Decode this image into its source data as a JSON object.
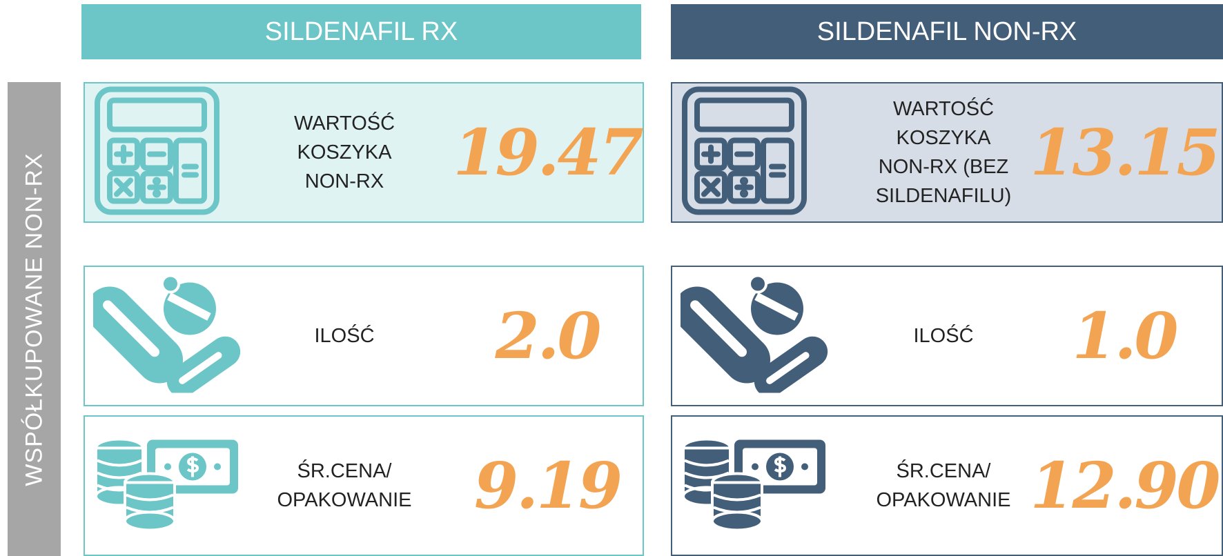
{
  "side_label": "WSPÓŁKUPOWANE NON-RX",
  "columns": [
    {
      "header": "SILDENAFIL RX",
      "rows": [
        {
          "label": "WARTOŚĆ KOSZYKA NON-RX",
          "value": "19.47"
        },
        {
          "label": "ILOŚĆ",
          "value": "2.0"
        },
        {
          "label": "ŚR.CENA/ OPAKOWANIE",
          "value": "9.19"
        }
      ]
    },
    {
      "header": "SILDENAFIL NON-RX",
      "rows": [
        {
          "label": "WARTOŚĆ KOSZYKA NON-RX (BEZ SILDENAFILU)",
          "value": "13.15"
        },
        {
          "label": "ILOŚĆ",
          "value": "1.0"
        },
        {
          "label": "ŚR.CENA/ OPAKOWANIE",
          "value": "12.90"
        }
      ]
    }
  ]
}
